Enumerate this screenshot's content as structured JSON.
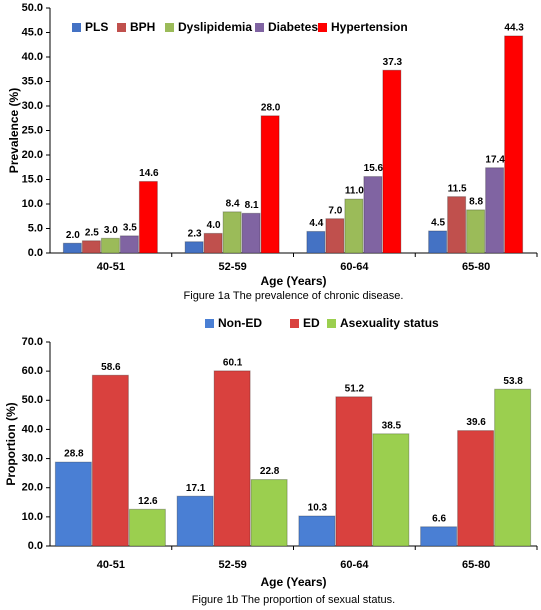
{
  "chart_data": [
    {
      "type": "bar",
      "caption": "Figure 1a  The prevalence of chronic disease.",
      "xlabel": "Age (Years)",
      "ylabel": "Prevalence (%)",
      "categories": [
        "40-51",
        "52-59",
        "60-64",
        "65-80"
      ],
      "series": [
        {
          "name": "PLS",
          "color": "#4472c4",
          "values": [
            2.0,
            2.3,
            4.4,
            4.5
          ],
          "value_labels": [
            "2.0",
            "2.3",
            "4.4",
            "4.5"
          ]
        },
        {
          "name": "BPH",
          "color": "#c0504d",
          "values": [
            2.5,
            4.0,
            7.0,
            11.5
          ],
          "value_labels": [
            "2.5",
            "4.0",
            "7.0",
            "11.5"
          ]
        },
        {
          "name": "Dyslipidemia",
          "color": "#9bbb59",
          "values": [
            3.0,
            8.4,
            11.0,
            8.8
          ],
          "value_labels": [
            "3.0",
            "8.4",
            "11.0",
            "8.8"
          ]
        },
        {
          "name": "Diabetes",
          "color": "#8064a2",
          "values": [
            3.5,
            8.1,
            15.6,
            17.4
          ],
          "value_labels": [
            "3.5",
            "8.1",
            "15.6",
            "17.4"
          ]
        },
        {
          "name": "Hypertension",
          "color": "#ff0000",
          "values": [
            14.6,
            28.0,
            37.3,
            44.3
          ],
          "value_labels": [
            "14.6",
            "28.0",
            "37.3",
            "44.3"
          ]
        }
      ],
      "ylim": [
        0,
        50
      ],
      "yticks": [
        {
          "value": 0,
          "label": "0.0"
        },
        {
          "value": 5,
          "label": "5.0"
        },
        {
          "value": 10,
          "label": "10.0"
        },
        {
          "value": 15,
          "label": "15.0"
        },
        {
          "value": 20,
          "label": "20.0"
        },
        {
          "value": 25,
          "label": "25.0"
        },
        {
          "value": 30,
          "label": "30.0"
        },
        {
          "value": 35,
          "label": "35.0"
        },
        {
          "value": 40,
          "label": "40.0"
        },
        {
          "value": 45,
          "label": "45.0"
        },
        {
          "value": 50,
          "label": "50.0"
        }
      ],
      "legend": "top"
    },
    {
      "type": "bar",
      "caption": "Figure 1b  The proportion of sexual status.",
      "xlabel": "Age (Years)",
      "ylabel": "Proportion (%)",
      "categories": [
        "40-51",
        "52-59",
        "60-64",
        "65-80"
      ],
      "series": [
        {
          "name": "Non-ED",
          "color": "#4a7fd4",
          "values": [
            28.8,
            17.1,
            10.3,
            6.6
          ],
          "value_labels": [
            "28.8",
            "17.1",
            "10.3",
            "6.6"
          ]
        },
        {
          "name": "ED",
          "color": "#d9413e",
          "values": [
            58.6,
            60.1,
            51.2,
            39.6
          ],
          "value_labels": [
            "58.6",
            "60.1",
            "51.2",
            "39.6"
          ]
        },
        {
          "name": "Asexuality status",
          "color": "#9bcf4f",
          "values": [
            12.6,
            22.8,
            38.5,
            53.8
          ],
          "value_labels": [
            "12.6",
            "22.8",
            "38.5",
            "53.8"
          ]
        }
      ],
      "ylim": [
        0,
        70
      ],
      "yticks": [
        {
          "value": 0,
          "label": "0.0"
        },
        {
          "value": 10,
          "label": "10.0"
        },
        {
          "value": 20,
          "label": "20.0"
        },
        {
          "value": 30,
          "label": "30.0"
        },
        {
          "value": 40,
          "label": "40.0"
        },
        {
          "value": 50,
          "label": "50.0"
        },
        {
          "value": 60,
          "label": "60.0"
        },
        {
          "value": 70,
          "label": "70.0"
        }
      ],
      "legend": "top"
    }
  ]
}
